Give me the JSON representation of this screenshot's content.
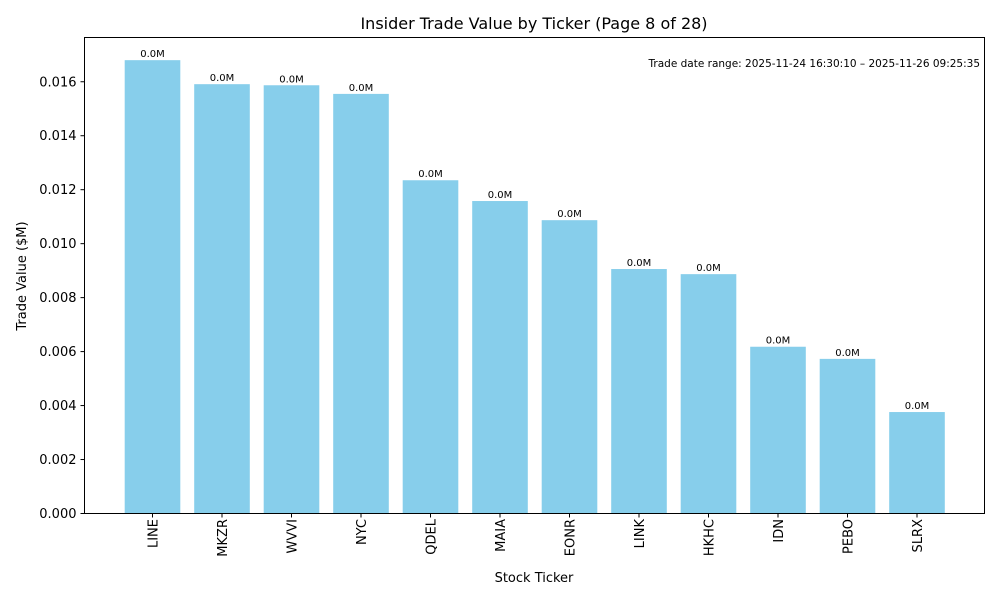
{
  "chart_data": {
    "type": "bar",
    "title": "Insider Trade Value by Ticker (Page 8 of 28)",
    "xlabel": "Stock Ticker",
    "ylabel": "Trade Value ($M)",
    "categories": [
      "LINE",
      "MKZR",
      "WVVI",
      "NYC",
      "QDEL",
      "MAIA",
      "EONR",
      "LINK",
      "HKHC",
      "IDN",
      "PEBO",
      "SLRX"
    ],
    "values": [
      0.0168,
      0.01591,
      0.01587,
      0.01555,
      0.01235,
      0.01158,
      0.01087,
      0.00906,
      0.00887,
      0.00618,
      0.00573,
      0.00376
    ],
    "data_labels": [
      "0.0M",
      "0.0M",
      "0.0M",
      "0.0M",
      "0.0M",
      "0.0M",
      "0.0M",
      "0.0M",
      "0.0M",
      "0.0M",
      "0.0M",
      "0.0M"
    ],
    "ylim": [
      0,
      0.01764
    ],
    "yticks": [
      "0.000",
      "0.002",
      "0.004",
      "0.006",
      "0.008",
      "0.010",
      "0.012",
      "0.014",
      "0.016"
    ],
    "ytick_values": [
      0,
      0.002,
      0.004,
      0.006,
      0.008,
      0.01,
      0.012,
      0.014,
      0.016
    ],
    "bar_color": "#87ceeb",
    "grid": false,
    "annotation": "Trade date range: 2025-11-24 16:30:10 – 2025-11-26 09:25:35"
  }
}
